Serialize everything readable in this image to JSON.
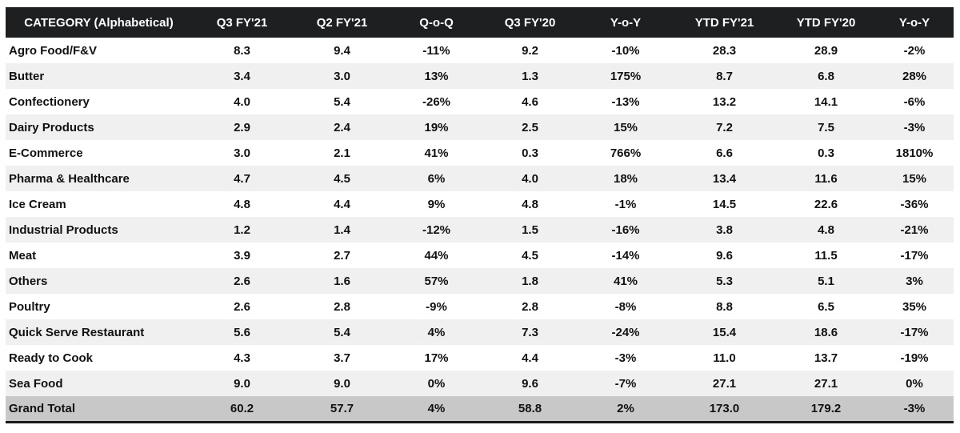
{
  "table": {
    "headers": [
      "CATEGORY (Alphabetical)",
      "Q3 FY'21",
      "Q2 FY'21",
      "Q-o-Q",
      "Q3 FY'20",
      "Y-o-Y",
      "YTD FY'21",
      "YTD FY'20",
      "Y-o-Y"
    ],
    "rows": [
      [
        "Agro Food/F&V",
        "8.3",
        "9.4",
        "-11%",
        "9.2",
        "-10%",
        "28.3",
        "28.9",
        "-2%"
      ],
      [
        "Butter",
        "3.4",
        "3.0",
        "13%",
        "1.3",
        "175%",
        "8.7",
        "6.8",
        "28%"
      ],
      [
        "Confectionery",
        "4.0",
        "5.4",
        "-26%",
        "4.6",
        "-13%",
        "13.2",
        "14.1",
        "-6%"
      ],
      [
        "Dairy Products",
        "2.9",
        "2.4",
        "19%",
        "2.5",
        "15%",
        "7.2",
        "7.5",
        "-3%"
      ],
      [
        "E-Commerce",
        "3.0",
        "2.1",
        "41%",
        "0.3",
        "766%",
        "6.6",
        "0.3",
        "1810%"
      ],
      [
        "Pharma & Healthcare",
        "4.7",
        "4.5",
        "6%",
        "4.0",
        "18%",
        "13.4",
        "11.6",
        "15%"
      ],
      [
        "Ice Cream",
        "4.8",
        "4.4",
        "9%",
        "4.8",
        "-1%",
        "14.5",
        "22.6",
        "-36%"
      ],
      [
        "Industrial Products",
        "1.2",
        "1.4",
        "-12%",
        "1.5",
        "-16%",
        "3.8",
        "4.8",
        "-21%"
      ],
      [
        "Meat",
        "3.9",
        "2.7",
        "44%",
        "4.5",
        "-14%",
        "9.6",
        "11.5",
        "-17%"
      ],
      [
        "Others",
        "2.6",
        "1.6",
        "57%",
        "1.8",
        "41%",
        "5.3",
        "5.1",
        "3%"
      ],
      [
        "Poultry",
        "2.6",
        "2.8",
        "-9%",
        "2.8",
        "-8%",
        "8.8",
        "6.5",
        "35%"
      ],
      [
        "Quick Serve Restaurant",
        "5.6",
        "5.4",
        "4%",
        "7.3",
        "-24%",
        "15.4",
        "18.6",
        "-17%"
      ],
      [
        "Ready to Cook",
        "4.3",
        "3.7",
        "17%",
        "4.4",
        "-3%",
        "11.0",
        "13.7",
        "-19%"
      ],
      [
        "Sea Food",
        "9.0",
        "9.0",
        "0%",
        "9.6",
        "-7%",
        "27.1",
        "27.1",
        "0%"
      ]
    ],
    "total": [
      "Grand Total",
      "60.2",
      "57.7",
      "4%",
      "58.8",
      "2%",
      "173.0",
      "179.2",
      "-3%"
    ]
  },
  "colors": {
    "header_bg": "#1d1f20",
    "header_text": "#ffffff",
    "alt_row_bg": "#f0f0f0",
    "total_row_bg": "#c8c8c8"
  }
}
